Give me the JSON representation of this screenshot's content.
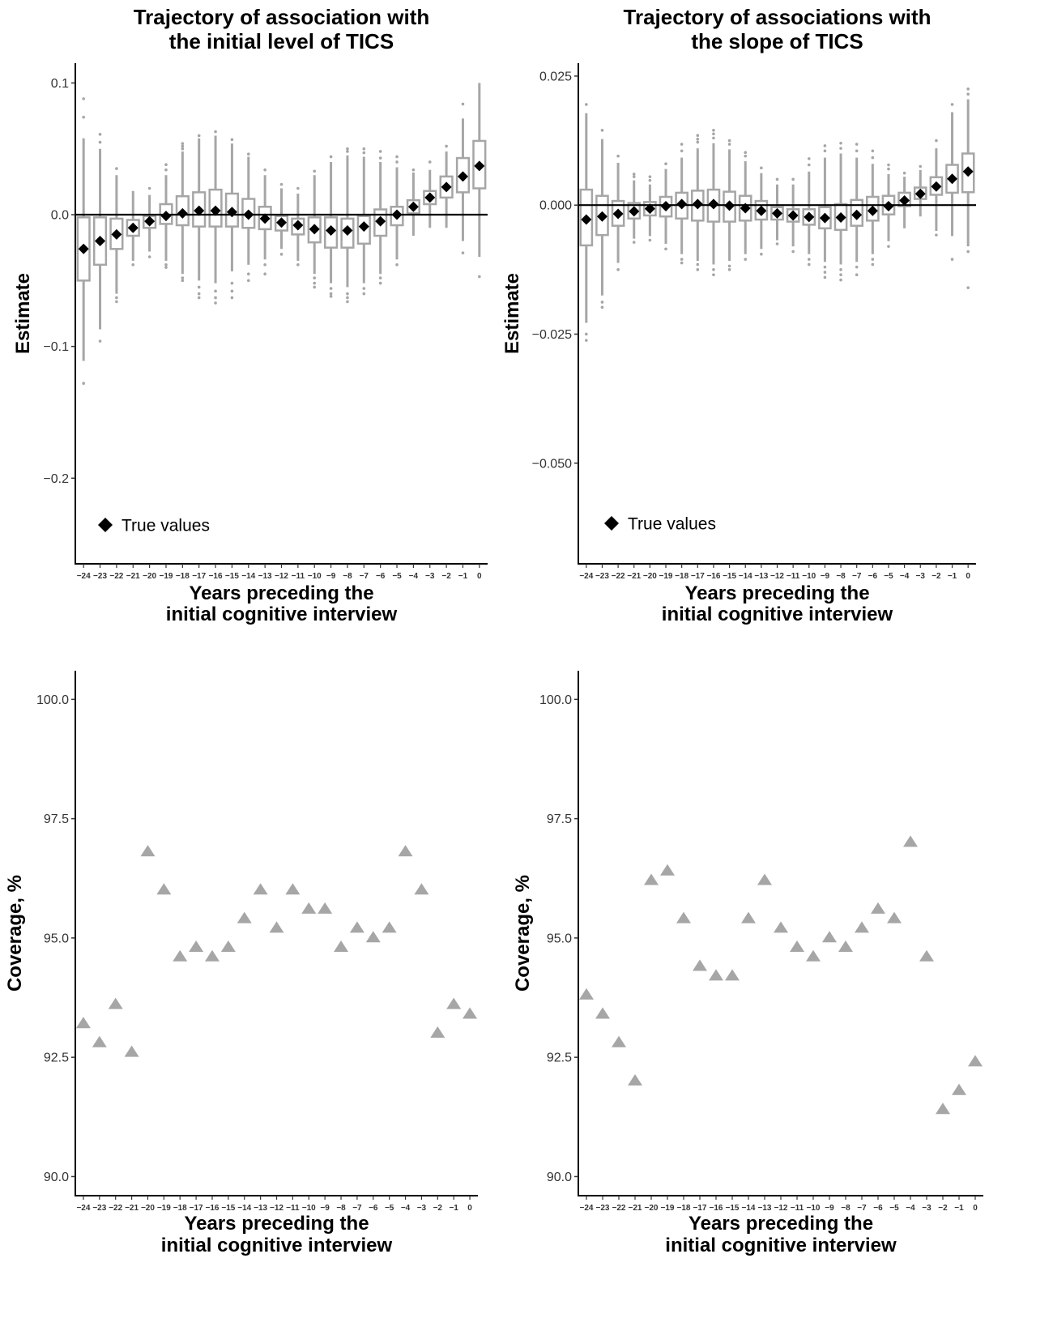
{
  "colors": {
    "box": "#a6a6a6",
    "outlier": "#a6a6a6",
    "true_value": "#000000",
    "triangle": "#a6a6a6",
    "reference": "#000000"
  },
  "chart_data": [
    {
      "id": "top-left",
      "type": "box",
      "title_lines": [
        "Trajectory of association with",
        "the initial level of TICS"
      ],
      "xlabel_lines": [
        "Years preceding the",
        "initial cognitive interview"
      ],
      "ylabel": "Estimate",
      "ylim": [
        -0.265,
        0.115
      ],
      "yticks": [
        0.1,
        0.0,
        -0.1,
        -0.2
      ],
      "ytick_labels": [
        "0.1",
        "0.0",
        "−0.1",
        "−0.2"
      ],
      "reference_line": 0,
      "categories": [
        "−24",
        "−23",
        "−22",
        "−21",
        "−20",
        "−19",
        "−18",
        "−17",
        "−16",
        "−15",
        "−14",
        "−13",
        "−12",
        "−11",
        "−10",
        "−9",
        "−8",
        "−7",
        "−6",
        "−5",
        "−4",
        "−3",
        "−2",
        "−1",
        "0"
      ],
      "legend_label": "True values",
      "true_values": [
        -0.026,
        -0.02,
        -0.015,
        -0.01,
        -0.005,
        -0.001,
        0.001,
        0.003,
        0.003,
        0.002,
        0.0,
        -0.003,
        -0.006,
        -0.008,
        -0.011,
        -0.012,
        -0.012,
        -0.009,
        -0.005,
        -0.0,
        0.006,
        0.013,
        0.021,
        0.029,
        0.037
      ],
      "boxes": [
        {
          "q1": -0.05,
          "q3": -0.002,
          "wlo": -0.111,
          "whi": 0.058,
          "out": [
            0.088,
            0.074,
            -0.128
          ]
        },
        {
          "q1": -0.038,
          "q3": -0.002,
          "wlo": -0.087,
          "whi": 0.05,
          "out": [
            0.061,
            0.055,
            -0.096
          ]
        },
        {
          "q1": -0.026,
          "q3": -0.003,
          "wlo": -0.06,
          "whi": 0.03,
          "out": [
            0.035,
            -0.063,
            -0.066
          ]
        },
        {
          "q1": -0.016,
          "q3": -0.004,
          "wlo": -0.035,
          "whi": 0.018,
          "out": [
            -0.038
          ]
        },
        {
          "q1": -0.01,
          "q3": -0.001,
          "wlo": -0.028,
          "whi": 0.015,
          "out": [
            0.02,
            -0.032
          ]
        },
        {
          "q1": -0.007,
          "q3": 0.008,
          "wlo": -0.035,
          "whi": 0.03,
          "out": [
            0.034,
            0.038,
            -0.038,
            -0.04
          ]
        },
        {
          "q1": -0.008,
          "q3": 0.014,
          "wlo": -0.045,
          "whi": 0.048,
          "out": [
            0.05,
            0.052,
            0.054,
            -0.048,
            -0.05
          ]
        },
        {
          "q1": -0.009,
          "q3": 0.017,
          "wlo": -0.05,
          "whi": 0.058,
          "out": [
            0.06,
            -0.055,
            -0.06,
            -0.063
          ]
        },
        {
          "q1": -0.009,
          "q3": 0.019,
          "wlo": -0.052,
          "whi": 0.06,
          "out": [
            0.063,
            -0.058,
            -0.063,
            -0.067
          ]
        },
        {
          "q1": -0.009,
          "q3": 0.016,
          "wlo": -0.043,
          "whi": 0.054,
          "out": [
            0.057,
            -0.052,
            -0.058,
            -0.063
          ]
        },
        {
          "q1": -0.01,
          "q3": 0.012,
          "wlo": -0.038,
          "whi": 0.044,
          "out": [
            0.046,
            -0.045,
            -0.05
          ]
        },
        {
          "q1": -0.011,
          "q3": 0.006,
          "wlo": -0.034,
          "whi": 0.03,
          "out": [
            0.034,
            -0.038,
            -0.045
          ]
        },
        {
          "q1": -0.012,
          "q3": -0.001,
          "wlo": -0.026,
          "whi": 0.02,
          "out": [
            0.023,
            -0.03
          ]
        },
        {
          "q1": -0.015,
          "q3": -0.003,
          "wlo": -0.035,
          "whi": 0.016,
          "out": [
            0.02,
            -0.038
          ]
        },
        {
          "q1": -0.021,
          "q3": -0.002,
          "wlo": -0.045,
          "whi": 0.03,
          "out": [
            0.033,
            -0.048,
            -0.052,
            -0.055
          ]
        },
        {
          "q1": -0.025,
          "q3": -0.002,
          "wlo": -0.052,
          "whi": 0.04,
          "out": [
            0.044,
            -0.056,
            -0.06,
            -0.062
          ]
        },
        {
          "q1": -0.025,
          "q3": -0.003,
          "wlo": -0.055,
          "whi": 0.045,
          "out": [
            0.048,
            0.05,
            -0.06,
            -0.063,
            -0.066
          ]
        },
        {
          "q1": -0.022,
          "q3": -0.001,
          "wlo": -0.052,
          "whi": 0.044,
          "out": [
            0.047,
            0.05,
            -0.056,
            -0.06
          ]
        },
        {
          "q1": -0.016,
          "q3": 0.004,
          "wlo": -0.045,
          "whi": 0.04,
          "out": [
            0.043,
            0.048,
            -0.048,
            -0.052
          ]
        },
        {
          "q1": -0.008,
          "q3": 0.006,
          "wlo": -0.034,
          "whi": 0.036,
          "out": [
            0.04,
            0.044,
            -0.038
          ]
        },
        {
          "q1": 0.001,
          "q3": 0.011,
          "wlo": -0.016,
          "whi": 0.032,
          "out": [
            0.034
          ]
        },
        {
          "q1": 0.008,
          "q3": 0.018,
          "wlo": -0.01,
          "whi": 0.034,
          "out": [
            0.04
          ]
        },
        {
          "q1": 0.013,
          "q3": 0.029,
          "wlo": -0.01,
          "whi": 0.048,
          "out": [
            0.052
          ]
        },
        {
          "q1": 0.017,
          "q3": 0.043,
          "wlo": -0.02,
          "whi": 0.073,
          "out": [
            0.084,
            -0.029
          ]
        },
        {
          "q1": 0.02,
          "q3": 0.056,
          "wlo": -0.032,
          "whi": 0.1,
          "out": [
            -0.047
          ]
        }
      ]
    },
    {
      "id": "top-right",
      "type": "box",
      "title_lines": [
        "Trajectory of associations with",
        "the slope of TICS"
      ],
      "xlabel_lines": [
        "Years preceding the",
        "initial cognitive interview"
      ],
      "ylabel": "Estimate",
      "ylim": [
        -0.0695,
        0.0275
      ],
      "yticks": [
        0.025,
        0.0,
        -0.025,
        -0.05
      ],
      "ytick_labels": [
        "0.025",
        "0.000",
        "−0.025",
        "−0.050"
      ],
      "reference_line": 0,
      "categories": [
        "−24",
        "−23",
        "−22",
        "−21",
        "−20",
        "−19",
        "−18",
        "−17",
        "−16",
        "−15",
        "−14",
        "−13",
        "−12",
        "−11",
        "−10",
        "−9",
        "−8",
        "−7",
        "−6",
        "−5",
        "−4",
        "−3",
        "−2",
        "−1",
        "0"
      ],
      "legend_label": "True values",
      "true_values": [
        -0.0028,
        -0.0022,
        -0.0017,
        -0.0012,
        -0.0007,
        -0.0002,
        0.0002,
        0.0002,
        0.0002,
        -0.0001,
        -0.0006,
        -0.0011,
        -0.0016,
        -0.002,
        -0.0023,
        -0.0025,
        -0.0024,
        -0.0019,
        -0.0011,
        -0.0002,
        0.0009,
        0.0022,
        0.0036,
        0.0051,
        0.0065
      ],
      "boxes": [
        {
          "q1": -0.0078,
          "q3": 0.003,
          "wlo": -0.0228,
          "whi": 0.0178,
          "out": [
            0.0195,
            -0.025,
            -0.0262
          ]
        },
        {
          "q1": -0.0058,
          "q3": 0.0018,
          "wlo": -0.0175,
          "whi": 0.0128,
          "out": [
            0.0145,
            -0.0188,
            -0.0198
          ]
        },
        {
          "q1": -0.004,
          "q3": 0.0008,
          "wlo": -0.0112,
          "whi": 0.0082,
          "out": [
            0.0095,
            -0.0125
          ]
        },
        {
          "q1": -0.0026,
          "q3": 0.0004,
          "wlo": -0.0065,
          "whi": 0.0048,
          "out": [
            0.0055,
            0.006,
            -0.0072
          ]
        },
        {
          "q1": -0.002,
          "q3": 0.0006,
          "wlo": -0.006,
          "whi": 0.004,
          "out": [
            0.0048,
            0.0055,
            -0.0068
          ]
        },
        {
          "q1": -0.0022,
          "q3": 0.0016,
          "wlo": -0.0075,
          "whi": 0.007,
          "out": [
            0.008,
            -0.0085
          ]
        },
        {
          "q1": -0.0026,
          "q3": 0.0024,
          "wlo": -0.0095,
          "whi": 0.0092,
          "out": [
            0.0105,
            0.0118,
            -0.0105,
            -0.0112
          ]
        },
        {
          "q1": -0.003,
          "q3": 0.0028,
          "wlo": -0.0108,
          "whi": 0.011,
          "out": [
            0.0122,
            0.0128,
            0.0135,
            -0.0115,
            -0.0125
          ]
        },
        {
          "q1": -0.0032,
          "q3": 0.003,
          "wlo": -0.0115,
          "whi": 0.012,
          "out": [
            0.013,
            0.0138,
            0.0145,
            -0.0125,
            -0.0135
          ]
        },
        {
          "q1": -0.0032,
          "q3": 0.0026,
          "wlo": -0.0108,
          "whi": 0.0108,
          "out": [
            0.0118,
            0.0125,
            -0.0118,
            -0.0125
          ]
        },
        {
          "q1": -0.003,
          "q3": 0.0018,
          "wlo": -0.0095,
          "whi": 0.0085,
          "out": [
            0.0095,
            0.0102,
            -0.0105
          ]
        },
        {
          "q1": -0.0028,
          "q3": 0.0008,
          "wlo": -0.0085,
          "whi": 0.0062,
          "out": [
            0.0072,
            -0.0095
          ]
        },
        {
          "q1": -0.0028,
          "q3": -0.0004,
          "wlo": -0.0068,
          "whi": 0.004,
          "out": [
            0.005,
            -0.0075
          ]
        },
        {
          "q1": -0.0032,
          "q3": -0.0008,
          "wlo": -0.008,
          "whi": 0.004,
          "out": [
            0.005,
            -0.009
          ]
        },
        {
          "q1": -0.0038,
          "q3": -0.0008,
          "wlo": -0.0095,
          "whi": 0.0065,
          "out": [
            0.0078,
            0.009,
            -0.0105,
            -0.0115
          ]
        },
        {
          "q1": -0.0045,
          "q3": -0.0004,
          "wlo": -0.011,
          "whi": 0.0092,
          "out": [
            0.0105,
            0.0115,
            -0.012,
            -0.013,
            -0.014
          ]
        },
        {
          "q1": -0.0048,
          "q3": 0.0002,
          "wlo": -0.0115,
          "whi": 0.01,
          "out": [
            0.011,
            0.012,
            -0.0125,
            -0.0135,
            -0.0145
          ]
        },
        {
          "q1": -0.004,
          "q3": 0.001,
          "wlo": -0.011,
          "whi": 0.0092,
          "out": [
            0.0105,
            0.0118,
            -0.012,
            -0.0135
          ]
        },
        {
          "q1": -0.003,
          "q3": 0.0016,
          "wlo": -0.0095,
          "whi": 0.008,
          "out": [
            0.0092,
            0.0105,
            -0.0105,
            -0.0115
          ]
        },
        {
          "q1": -0.0018,
          "q3": 0.0018,
          "wlo": -0.007,
          "whi": 0.006,
          "out": [
            0.007,
            0.0078,
            -0.008
          ]
        },
        {
          "q1": -0.0002,
          "q3": 0.0024,
          "wlo": -0.0045,
          "whi": 0.0055,
          "out": [
            0.0062
          ]
        },
        {
          "q1": 0.0012,
          "q3": 0.0034,
          "wlo": -0.0022,
          "whi": 0.0068,
          "out": [
            0.0075
          ]
        },
        {
          "q1": 0.002,
          "q3": 0.0054,
          "wlo": -0.005,
          "whi": 0.011,
          "out": [
            0.0125,
            -0.0058
          ]
        },
        {
          "q1": 0.0024,
          "q3": 0.0078,
          "wlo": -0.006,
          "whi": 0.018,
          "out": [
            0.0195,
            -0.0105
          ]
        },
        {
          "q1": 0.0025,
          "q3": 0.01,
          "wlo": -0.008,
          "whi": 0.0205,
          "out": [
            0.0215,
            0.0225,
            -0.009,
            -0.016
          ]
        }
      ]
    },
    {
      "id": "bottom-left",
      "type": "scatter",
      "xlabel_lines": [
        "Years preceding the",
        "initial cognitive interview"
      ],
      "ylabel": "Coverage, %",
      "ylim": [
        89.6,
        100.6
      ],
      "yticks": [
        100.0,
        97.5,
        95.0,
        92.5,
        90.0
      ],
      "ytick_labels": [
        "100.0",
        "97.5",
        "95.0",
        "92.5",
        "90.0"
      ],
      "categories": [
        "−24",
        "−23",
        "−22",
        "−21",
        "−20",
        "−19",
        "−18",
        "−17",
        "−16",
        "−15",
        "−14",
        "−13",
        "−12",
        "−11",
        "−10",
        "−9",
        "−8",
        "−7",
        "−6",
        "−5",
        "−4",
        "−3",
        "−2",
        "−1",
        "0"
      ],
      "values": [
        93.2,
        92.8,
        93.6,
        92.6,
        96.8,
        96.0,
        94.6,
        94.8,
        94.6,
        94.8,
        95.4,
        96.0,
        95.2,
        96.0,
        95.6,
        95.6,
        94.8,
        95.2,
        95.0,
        95.2,
        96.8,
        96.0,
        93.0,
        93.6,
        93.4
      ]
    },
    {
      "id": "bottom-right",
      "type": "scatter",
      "xlabel_lines": [
        "Years preceding the",
        "initial cognitive interview"
      ],
      "ylabel": "Coverage, %",
      "ylim": [
        89.6,
        100.6
      ],
      "yticks": [
        100.0,
        97.5,
        95.0,
        92.5,
        90.0
      ],
      "ytick_labels": [
        "100.0",
        "97.5",
        "95.0",
        "92.5",
        "90.0"
      ],
      "categories": [
        "−24",
        "−23",
        "−22",
        "−21",
        "−20",
        "−19",
        "−18",
        "−17",
        "−16",
        "−15",
        "−14",
        "−13",
        "−12",
        "−11",
        "−10",
        "−9",
        "−8",
        "−7",
        "−6",
        "−5",
        "−4",
        "−3",
        "−2",
        "−1",
        "0"
      ],
      "values": [
        93.8,
        93.4,
        92.8,
        92.0,
        96.2,
        96.4,
        95.4,
        94.4,
        94.2,
        94.2,
        95.4,
        96.2,
        95.2,
        94.8,
        94.6,
        95.0,
        94.8,
        95.2,
        95.6,
        95.4,
        97.0,
        94.6,
        91.4,
        91.8,
        92.4
      ]
    }
  ]
}
